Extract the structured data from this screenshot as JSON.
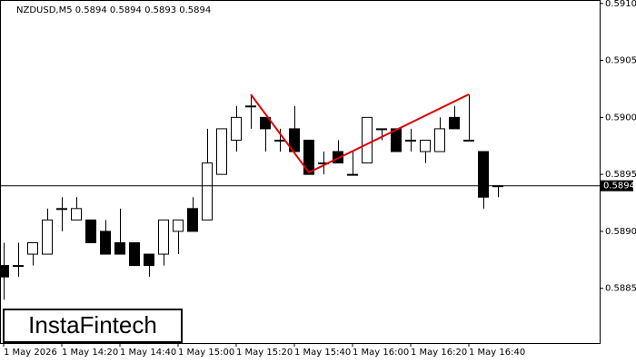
{
  "chart_data": {
    "type": "candlestick",
    "subtitle": "NZDUSD,M5  0.5894 0.5894 0.5893 0.5894",
    "watermark": "InstaFintech",
    "categories": [
      "1 May 2026",
      null,
      null,
      null,
      "1 May 14:20",
      null,
      null,
      null,
      "1 May 14:40",
      null,
      null,
      null,
      "1 May 15:00",
      null,
      null,
      null,
      "1 May 15:20",
      null,
      null,
      null,
      "1 May 15:40",
      null,
      null,
      null,
      "1 May 16:00",
      null,
      null,
      null,
      "1 May 16:20",
      null,
      null,
      null,
      "1 May 16:40",
      null,
      null
    ],
    "open": [
      0.5887,
      0.5887,
      0.5888,
      0.5888,
      0.5892,
      0.5891,
      0.5891,
      0.589,
      0.5889,
      0.5889,
      0.5888,
      0.5888,
      0.589,
      0.5892,
      0.5891,
      0.5895,
      0.5898,
      0.5901,
      0.59,
      0.5898,
      0.5899,
      0.5898,
      0.5896,
      0.5897,
      0.5895,
      0.5896,
      0.5899,
      0.5899,
      0.5898,
      0.5897,
      0.5897,
      0.59,
      0.5898,
      0.5897,
      0.5894
    ],
    "high": [
      0.5889,
      0.5889,
      0.5889,
      0.5892,
      0.5893,
      0.5893,
      0.5891,
      0.5891,
      0.5892,
      0.5889,
      0.5888,
      0.5891,
      0.5891,
      0.5893,
      0.5899,
      0.5899,
      0.5901,
      0.5902,
      0.59,
      0.5899,
      0.5901,
      0.5898,
      0.5897,
      0.5898,
      0.5897,
      0.59,
      0.5899,
      0.5899,
      0.5899,
      0.5898,
      0.59,
      0.5901,
      0.5902,
      0.5897,
      0.5894
    ],
    "low": [
      0.5884,
      0.5886,
      0.5887,
      0.5888,
      0.589,
      0.5891,
      0.5889,
      0.5888,
      0.5888,
      0.5887,
      0.5886,
      0.5887,
      0.5888,
      0.589,
      0.5891,
      0.5895,
      0.5897,
      0.5899,
      0.5897,
      0.5897,
      0.5897,
      0.5895,
      0.5895,
      0.5896,
      0.5895,
      0.5896,
      0.5898,
      0.5897,
      0.5897,
      0.5896,
      0.5897,
      0.5899,
      0.5898,
      0.5892,
      0.5893
    ],
    "close": [
      0.5886,
      0.5887,
      0.5889,
      0.5891,
      0.5892,
      0.5892,
      0.5889,
      0.5888,
      0.5888,
      0.5887,
      0.5887,
      0.5891,
      0.5891,
      0.589,
      0.5896,
      0.5899,
      0.59,
      0.5901,
      0.5899,
      0.5898,
      0.5897,
      0.5895,
      0.5896,
      0.5896,
      0.5895,
      0.59,
      0.5899,
      0.5897,
      0.5898,
      0.5898,
      0.5899,
      0.5899,
      0.5898,
      0.5893,
      0.5894
    ],
    "up_color": "#ffffff",
    "down_color": "#000000",
    "last_price": 0.5894,
    "ylim": [
      0.58802,
      0.59103
    ],
    "yticks": [
      0.5885,
      {
        "value": 0.589,
        "label": "0.5890"
      },
      0.5895,
      {
        "value": 0.59,
        "label": "0.5900"
      },
      0.5905,
      {
        "value": 0.591,
        "label": "0.5910"
      }
    ]
  }
}
